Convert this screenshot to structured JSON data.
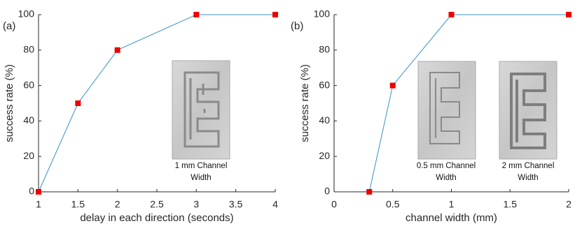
{
  "chart_data": [
    {
      "type": "line",
      "panel_label": "(a)",
      "xlabel": "delay in each direction (seconds)",
      "ylabel": "success rate (%)",
      "x": [
        1,
        1.5,
        2,
        3,
        4
      ],
      "series": [
        {
          "color": "#3a8fc8",
          "marker_color": "#ee0000",
          "values": [
            0,
            50,
            80,
            100,
            100
          ]
        }
      ],
      "xlim": [
        1,
        4
      ],
      "xticks": [
        1,
        1.5,
        2,
        2.5,
        3,
        3.5,
        4
      ],
      "ylim": [
        0,
        100
      ],
      "yticks": [
        0,
        20,
        40,
        60,
        80,
        100
      ],
      "annotations": [
        {
          "text": [
            "1 mm Channel",
            "Width"
          ]
        }
      ]
    },
    {
      "type": "line",
      "panel_label": "(b)",
      "xlabel": "channel width (mm)",
      "ylabel": "success rate (%)",
      "x": [
        0.3,
        0.5,
        1,
        2
      ],
      "series": [
        {
          "color": "#3a8fc8",
          "marker_color": "#ee0000",
          "values": [
            0,
            60,
            100,
            100
          ]
        }
      ],
      "xlim": [
        0,
        2
      ],
      "xticks": [
        0,
        0.5,
        1,
        1.5,
        2
      ],
      "ylim": [
        0,
        100
      ],
      "yticks": [
        0,
        20,
        40,
        60,
        80,
        100
      ],
      "annotations": [
        {
          "text": [
            "0.5 mm Channel",
            "Width"
          ]
        },
        {
          "text": [
            "2 mm Channel",
            "Width"
          ]
        }
      ]
    }
  ]
}
